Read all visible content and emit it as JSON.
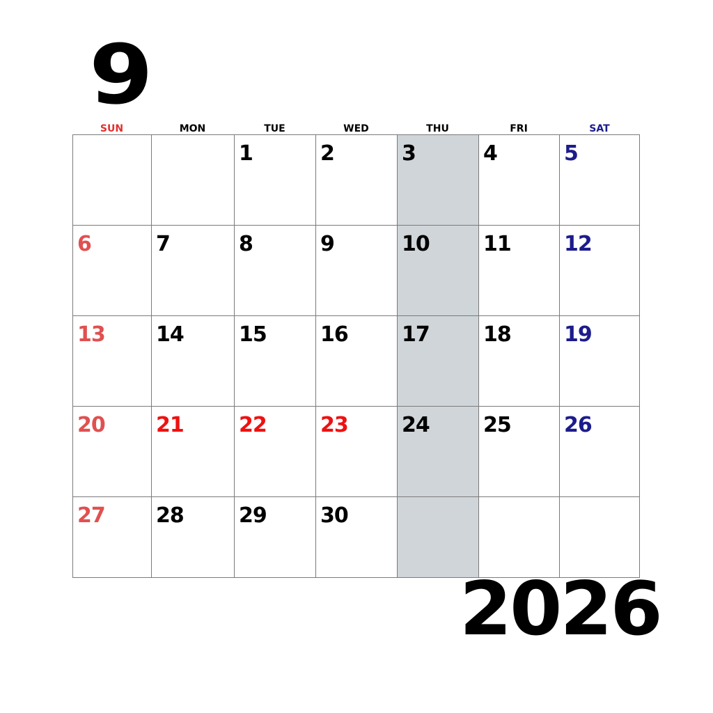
{
  "calendar": {
    "month": "9",
    "year": "2026",
    "weekdays": [
      "SUN",
      "MON",
      "TUE",
      "WED",
      "THU",
      "FRI",
      "SAT"
    ],
    "weeks": [
      [
        "",
        "",
        "1",
        "2",
        "3",
        "4",
        "5"
      ],
      [
        "6",
        "7",
        "8",
        "9",
        "10",
        "11",
        "12"
      ],
      [
        "13",
        "14",
        "15",
        "16",
        "17",
        "18",
        "19"
      ],
      [
        "20",
        "21",
        "22",
        "23",
        "24",
        "25",
        "26"
      ],
      [
        "27",
        "28",
        "29",
        "30",
        "",
        "",
        ""
      ]
    ],
    "highlighted_weekday": "THU",
    "colors": {
      "sunday": "#e05050",
      "saturday": "#1c1c8c",
      "holiday": "#ee1111",
      "weekday": "#000000",
      "weekday_header_red": "#e03030",
      "highlight_column": "#cfd5d9"
    },
    "holidays": [
      "21",
      "22",
      "23"
    ]
  }
}
